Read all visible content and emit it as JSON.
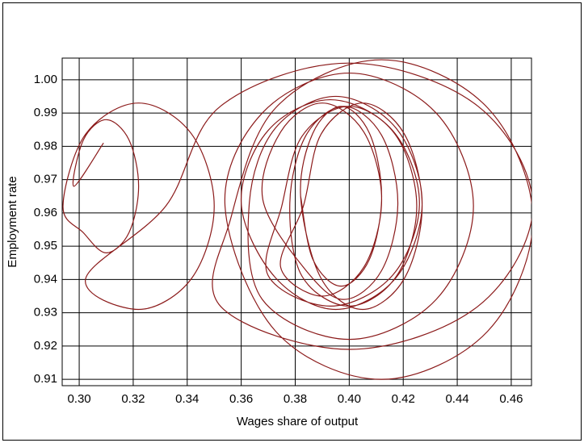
{
  "chart_data": {
    "type": "line",
    "xlabel": "Wages share of output",
    "ylabel": "Employment rate",
    "xlim": [
      0.2937,
      0.4675
    ],
    "ylim": [
      0.9081,
      1.0065
    ],
    "xticks": [
      {
        "value": 0.3,
        "label": "0.30"
      },
      0.32,
      0.34,
      0.36,
      0.38,
      {
        "value": 0.4,
        "label": "0.40"
      },
      0.42,
      0.44,
      0.46
    ],
    "yticks": [
      0.91,
      0.92,
      0.93,
      0.94,
      0.95,
      0.96,
      0.97,
      0.98,
      0.99,
      {
        "value": 1,
        "label": "1.00"
      }
    ],
    "grid": true,
    "series": [
      {
        "color": "#8b1a1a",
        "x": [
          0.309,
          0.298,
          0.3016,
          0.31,
          0.3184,
          0.322,
          0.3184,
          0.31,
          0.3016,
          0.294,
          0.3024,
          0.322,
          0.3416,
          0.35,
          0.3416,
          0.322,
          0.3024,
          0.332,
          0.3524,
          0.4,
          0.4476,
          0.468,
          0.4476,
          0.4,
          0.3524,
          0.356,
          0.3728,
          0.412,
          0.4512,
          0.468,
          0.4512,
          0.412,
          0.3728,
          0.354,
          0.3678,
          0.4,
          0.4322,
          0.446,
          0.4322,
          0.4,
          0.3678,
          0.363,
          0.3726,
          0.395,
          0.4174,
          0.427,
          0.4174,
          0.395,
          0.3726,
          0.36,
          0.3699,
          0.393,
          0.4161,
          0.426,
          0.4161,
          0.393,
          0.3699,
          0.375,
          0.3825,
          0.4,
          0.4175,
          0.425,
          0.4175,
          0.4,
          0.3825,
          0.378,
          0.384,
          0.398,
          0.412,
          0.418,
          0.412,
          0.398,
          0.384,
          0.368,
          0.3746,
          0.39,
          0.4054,
          0.412,
          0.4054,
          0.39,
          0.3746,
          0.383,
          0.3896,
          0.405,
          0.4204,
          0.427,
          0.4204,
          0.405,
          0.3896,
          0.382,
          0.3865,
          0.397,
          0.4075,
          0.412,
          0.4075,
          0.397,
          0.3865,
          0.382
        ],
        "values": [
          0.981,
          0.968,
          0.982,
          0.988,
          0.982,
          0.968,
          0.954,
          0.948,
          0.954,
          0.962,
          0.9837,
          0.993,
          0.9837,
          0.962,
          0.9403,
          0.931,
          0.9403,
          0.962,
          0.9921,
          1.005,
          0.9921,
          0.962,
          0.9319,
          0.919,
          0.9319,
          0.958,
          0.9916,
          1.006,
          0.9916,
          0.958,
          0.9244,
          0.91,
          0.9244,
          0.962,
          0.99,
          1.002,
          0.99,
          0.962,
          0.934,
          0.922,
          0.934,
          0.963,
          0.9854,
          0.995,
          0.9854,
          0.963,
          0.9406,
          0.931,
          0.9406,
          0.963,
          0.9847,
          0.994,
          0.9847,
          0.963,
          0.9413,
          0.932,
          0.9413,
          0.962,
          0.983,
          0.992,
          0.983,
          0.962,
          0.941,
          0.932,
          0.941,
          0.963,
          0.9833,
          0.992,
          0.9833,
          0.963,
          0.9427,
          0.934,
          0.9427,
          0.964,
          0.9843,
          0.993,
          0.9843,
          0.964,
          0.9437,
          0.935,
          0.9437,
          0.962,
          0.9837,
          0.993,
          0.9837,
          0.962,
          0.9403,
          0.931,
          0.9403,
          0.965,
          0.9839,
          0.992,
          0.9839,
          0.965,
          0.9461,
          0.938,
          0.9461,
          0.965
        ]
      }
    ]
  }
}
